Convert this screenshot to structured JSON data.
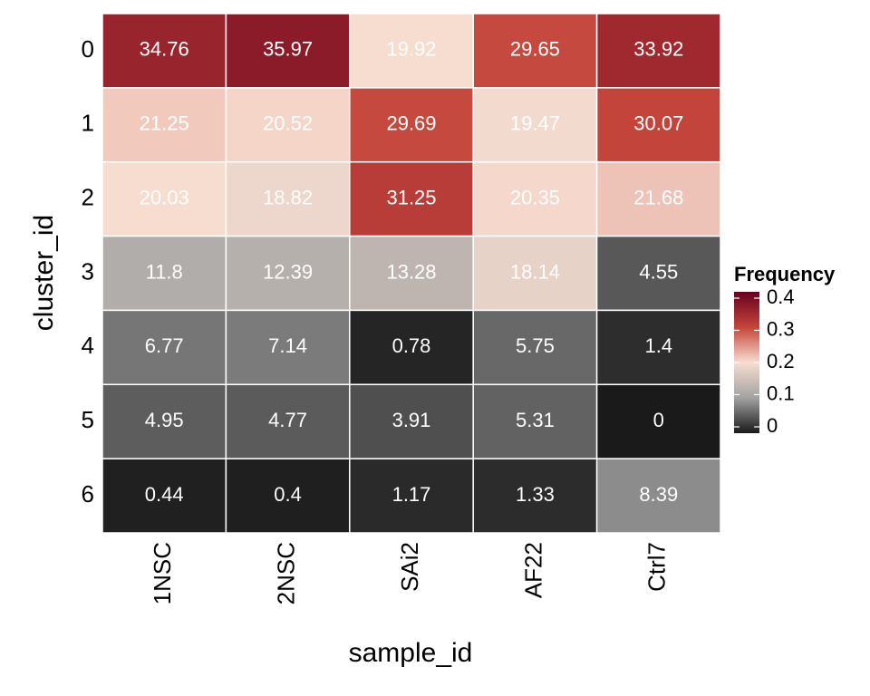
{
  "chart_data": {
    "type": "heatmap",
    "xlabel": "sample_id",
    "ylabel": "cluster_id",
    "x_categories": [
      "1NSC",
      "2NSC",
      "SAi2",
      "AF22",
      "Ctrl7"
    ],
    "y_categories": [
      "0",
      "1",
      "2",
      "3",
      "4",
      "5",
      "6"
    ],
    "values": [
      [
        0.3476,
        0.3597,
        0.1992,
        0.2965,
        0.3392
      ],
      [
        0.2125,
        0.2052,
        0.2969,
        0.1947,
        0.3007
      ],
      [
        0.2003,
        0.1882,
        0.3125,
        0.2035,
        0.2168
      ],
      [
        0.118,
        0.1239,
        0.1328,
        0.1814,
        0.0455
      ],
      [
        0.0677,
        0.0714,
        0.0078,
        0.0575,
        0.014
      ],
      [
        0.0495,
        0.0477,
        0.0391,
        0.0531,
        0
      ],
      [
        0.0044,
        0.004,
        0.0117,
        0.0133,
        0.0839
      ]
    ],
    "value_labels": [
      [
        "34.76",
        "35.97",
        "19.92",
        "29.65",
        "33.92"
      ],
      [
        "21.25",
        "20.52",
        "29.69",
        "19.47",
        "30.07"
      ],
      [
        "20.03",
        "18.82",
        "31.25",
        "20.35",
        "21.68"
      ],
      [
        "11.8",
        "12.39",
        "13.28",
        "18.14",
        "4.55"
      ],
      [
        "6.77",
        "7.14",
        "0.78",
        "5.75",
        "1.4"
      ],
      [
        "4.95",
        "4.77",
        "3.91",
        "5.31",
        "0"
      ],
      [
        "0.44",
        "0.4",
        "1.17",
        "1.33",
        "8.39"
      ]
    ],
    "legend_title": "Frequency",
    "clim": [
      0,
      0.4
    ],
    "cticks": [
      0,
      0.1,
      0.2,
      0.3,
      0.4
    ],
    "colors": [
      "#1a1a1a",
      "#a2a2a2",
      "#f7ddd0",
      "#c4443a",
      "#67001f"
    ]
  }
}
